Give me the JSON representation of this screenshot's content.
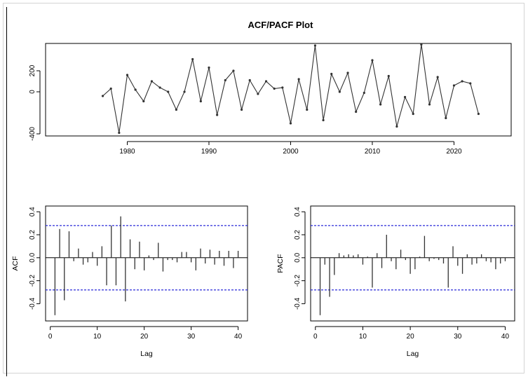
{
  "title": "ACF/PACF Plot",
  "chart_data": [
    {
      "type": "line",
      "title": "",
      "xlabel": "",
      "ylabel": "",
      "x": [
        1977,
        1978,
        1979,
        1980,
        1981,
        1982,
        1983,
        1984,
        1985,
        1986,
        1987,
        1988,
        1989,
        1990,
        1991,
        1992,
        1993,
        1994,
        1995,
        1996,
        1997,
        1998,
        1999,
        2000,
        2001,
        2002,
        2003,
        2004,
        2005,
        2006,
        2007,
        2008,
        2009,
        2010,
        2011,
        2012,
        2013,
        2014,
        2015,
        2016,
        2017,
        2018,
        2019,
        2020,
        2021,
        2022,
        2023
      ],
      "values": [
        -40,
        30,
        -390,
        160,
        20,
        -90,
        100,
        40,
        0,
        -170,
        0,
        310,
        -90,
        230,
        -220,
        110,
        200,
        -170,
        110,
        -20,
        100,
        30,
        40,
        -300,
        120,
        -170,
        440,
        -270,
        170,
        0,
        180,
        -190,
        -10,
        300,
        -120,
        150,
        -330,
        -50,
        -210,
        450,
        -120,
        140,
        -250,
        60,
        100,
        80,
        -210
      ],
      "xlim": [
        1970,
        2027
      ],
      "ylim": [
        -420,
        460
      ],
      "xticks": [
        1980,
        1990,
        2000,
        2010,
        2020
      ],
      "xtick_labels": [
        "1980",
        "1990",
        "2000",
        "2010",
        "2020"
      ],
      "yticks": [
        -400,
        0,
        200
      ],
      "ytick_labels": [
        "-400",
        "0",
        "200"
      ],
      "grid": false
    },
    {
      "type": "bar",
      "title": "",
      "xlabel": "Lag",
      "ylabel": "ACF",
      "x": [
        0,
        1,
        2,
        3,
        4,
        5,
        6,
        7,
        8,
        9,
        10,
        11,
        12,
        13,
        14,
        15,
        16,
        17,
        18,
        19,
        20,
        21,
        22,
        23,
        24,
        25,
        26,
        27,
        28,
        29,
        30,
        31,
        32,
        33,
        34,
        35,
        36,
        37,
        38,
        39,
        40
      ],
      "values": [
        0,
        -0.5,
        0.25,
        -0.37,
        0.23,
        -0.03,
        0.08,
        -0.06,
        -0.04,
        0.05,
        -0.07,
        0.1,
        -0.24,
        0.28,
        -0.24,
        0.36,
        -0.38,
        0.16,
        -0.1,
        0.14,
        -0.11,
        0.02,
        -0.02,
        0.13,
        -0.12,
        -0.02,
        -0.02,
        -0.04,
        0.05,
        0.05,
        -0.04,
        -0.11,
        0.08,
        -0.05,
        0.07,
        -0.06,
        0.06,
        -0.07,
        0.06,
        -0.09,
        0.06
      ],
      "conf_limits": [
        -0.28,
        0.28
      ],
      "xlim": [
        -1,
        42
      ],
      "ylim": [
        -0.55,
        0.45
      ],
      "xticks": [
        0,
        10,
        20,
        30,
        40
      ],
      "xtick_labels": [
        "0",
        "10",
        "20",
        "30",
        "40"
      ],
      "yticks": [
        -0.4,
        -0.2,
        0.0,
        0.2,
        0.4
      ],
      "ytick_labels": [
        "-0.4",
        "-0.2",
        "0.0",
        "0.2",
        "0.4"
      ],
      "grid": false
    },
    {
      "type": "bar",
      "title": "",
      "xlabel": "Lag",
      "ylabel": "PACF",
      "x": [
        1,
        2,
        3,
        4,
        5,
        6,
        7,
        8,
        9,
        10,
        11,
        12,
        13,
        14,
        15,
        16,
        17,
        18,
        19,
        20,
        21,
        22,
        23,
        24,
        25,
        26,
        27,
        28,
        29,
        30,
        31,
        32,
        33,
        34,
        35,
        36,
        37,
        38,
        39,
        40
      ],
      "values": [
        -0.5,
        -0.06,
        -0.34,
        -0.15,
        0.04,
        0.02,
        0.03,
        0.02,
        0.03,
        -0.06,
        0.01,
        -0.26,
        0.04,
        -0.09,
        0.2,
        -0.03,
        -0.1,
        0.07,
        -0.02,
        -0.14,
        -0.1,
        0.01,
        0.19,
        -0.03,
        -0.01,
        -0.02,
        -0.05,
        -0.26,
        0.1,
        -0.07,
        -0.14,
        0.03,
        -0.06,
        -0.05,
        0.03,
        -0.03,
        -0.04,
        -0.1,
        -0.05,
        -0.03
      ],
      "conf_limits": [
        -0.28,
        0.28
      ],
      "xlim": [
        -1,
        42
      ],
      "ylim": [
        -0.55,
        0.45
      ],
      "xticks": [
        0,
        10,
        20,
        30,
        40
      ],
      "xtick_labels": [
        "0",
        "10",
        "20",
        "30",
        "40"
      ],
      "yticks": [
        -0.4,
        -0.2,
        0.0,
        0.2,
        0.4
      ],
      "ytick_labels": [
        "-0.4",
        "-0.2",
        "0.0",
        "0.2",
        "0.4"
      ],
      "grid": false
    }
  ],
  "colors": {
    "axes": "#000000",
    "series": "#333333",
    "confidence_band": "#2b2bd9"
  }
}
